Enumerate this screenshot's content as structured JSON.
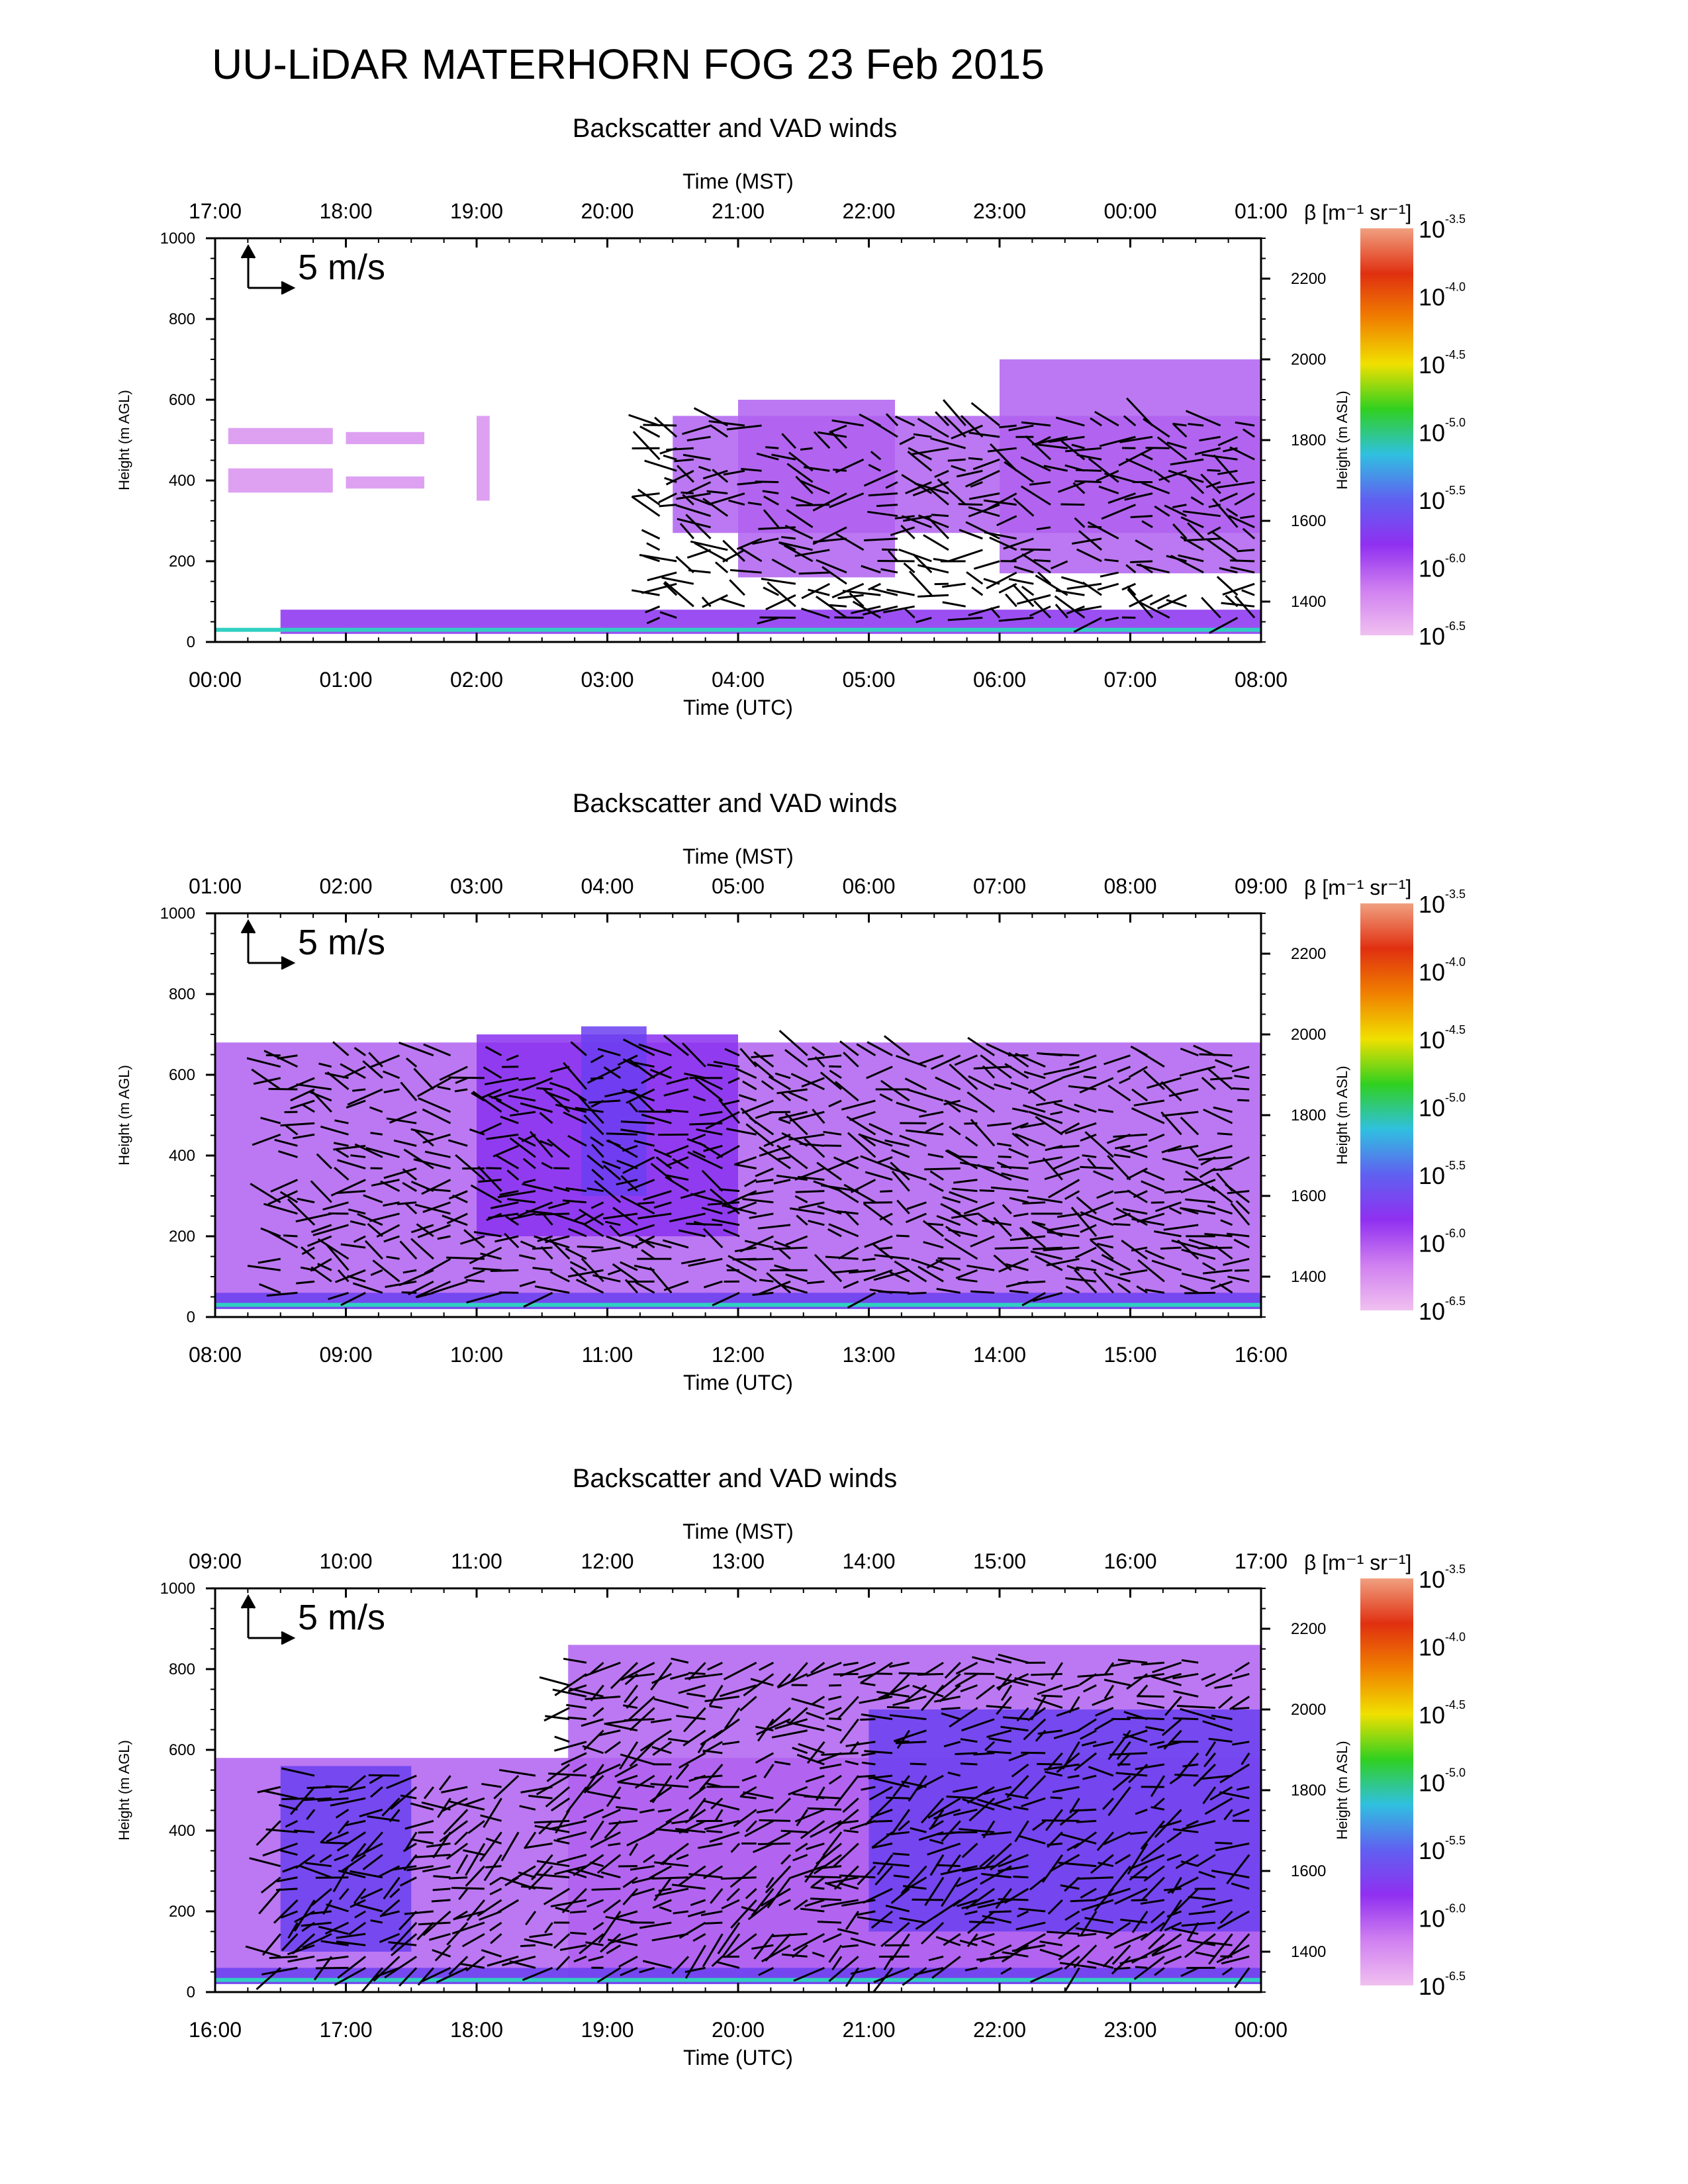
{
  "title": "UU-LiDAR MATERHORN FOG  23 Feb 2015",
  "chart_data": [
    {
      "type": "heatmap",
      "subtitle": "Backscatter and VAD winds",
      "top_axis_label": "Time (MST)",
      "top_ticks": [
        "17:00",
        "18:00",
        "19:00",
        "20:00",
        "21:00",
        "22:00",
        "23:00",
        "00:00",
        "01:00"
      ],
      "xlabel": "Time (UTC)",
      "x_ticks": [
        "00:00",
        "01:00",
        "02:00",
        "03:00",
        "04:00",
        "05:00",
        "06:00",
        "07:00",
        "08:00"
      ],
      "xlim": [
        "00:00",
        "08:00"
      ],
      "ylabel": "Height (m AGL)",
      "y_ticks": [
        0,
        200,
        400,
        600,
        800,
        1000
      ],
      "ylim": [
        0,
        1000
      ],
      "y2label": "Height (m ASL)",
      "y2_ticks": [
        1400,
        1600,
        1800,
        2000,
        2200
      ],
      "reference_vector": "5 m/s",
      "colorbar_label": "β [m⁻¹ sr⁻¹]",
      "colorbar_ticks": [
        "10^-3.5",
        "10^-4.0",
        "10^-4.5",
        "10^-5.0",
        "10^-5.5",
        "10^-6.0",
        "10^-6.5"
      ],
      "colorbar_colors": [
        "#f0a080",
        "#e03010",
        "#f08000",
        "#f0e000",
        "#30d020",
        "#30c0e0",
        "#6060f0",
        "#9030f0",
        "#d080f0",
        "#f0c0f0"
      ],
      "cloud_regions": [
        {
          "t0": 0.1,
          "t1": 0.9,
          "z0": 370,
          "z1": 430,
          "level": 0.2
        },
        {
          "t0": 0.1,
          "t1": 0.9,
          "z0": 490,
          "z1": 530,
          "level": 0.15
        },
        {
          "t0": 1.0,
          "t1": 1.6,
          "z0": 490,
          "z1": 520,
          "level": 0.15
        },
        {
          "t0": 1.0,
          "t1": 1.6,
          "z0": 380,
          "z1": 410,
          "level": 0.15
        },
        {
          "t0": 2.0,
          "t1": 2.1,
          "z0": 350,
          "z1": 560,
          "level": 0.2
        },
        {
          "t0": 3.5,
          "t1": 8.0,
          "z0": 270,
          "z1": 560,
          "level": 0.35
        },
        {
          "t0": 4.0,
          "t1": 5.2,
          "z0": 160,
          "z1": 600,
          "level": 0.3
        },
        {
          "t0": 6.0,
          "t1": 8.0,
          "z0": 170,
          "z1": 700,
          "level": 0.3
        },
        {
          "t0": 0.5,
          "t1": 8.0,
          "z0": 20,
          "z1": 80,
          "level": 0.4
        }
      ]
    },
    {
      "type": "heatmap",
      "subtitle": "Backscatter and VAD winds",
      "top_axis_label": "Time (MST)",
      "top_ticks": [
        "01:00",
        "02:00",
        "03:00",
        "04:00",
        "05:00",
        "06:00",
        "07:00",
        "08:00",
        "09:00"
      ],
      "xlabel": "Time (UTC)",
      "x_ticks": [
        "08:00",
        "09:00",
        "10:00",
        "11:00",
        "12:00",
        "13:00",
        "14:00",
        "15:00",
        "16:00"
      ],
      "xlim": [
        "08:00",
        "16:00"
      ],
      "ylabel": "Height (m AGL)",
      "y_ticks": [
        0,
        200,
        400,
        600,
        800,
        1000
      ],
      "ylim": [
        0,
        1000
      ],
      "y2label": "Height (m ASL)",
      "y2_ticks": [
        1400,
        1600,
        1800,
        2000,
        2200
      ],
      "reference_vector": "5 m/s",
      "colorbar_label": "β [m⁻¹ sr⁻¹]",
      "colorbar_ticks": [
        "10^-3.5",
        "10^-4.0",
        "10^-4.5",
        "10^-5.0",
        "10^-5.5",
        "10^-6.0",
        "10^-6.5"
      ],
      "colorbar_colors": [
        "#f0a080",
        "#e03010",
        "#f08000",
        "#f0e000",
        "#30d020",
        "#30c0e0",
        "#6060f0",
        "#9030f0",
        "#d080f0",
        "#f0c0f0"
      ],
      "cloud_regions": [
        {
          "t0": 0.0,
          "t1": 8.0,
          "z0": 20,
          "z1": 680,
          "level": 0.3
        },
        {
          "t0": 2.0,
          "t1": 4.0,
          "z0": 200,
          "z1": 700,
          "level": 0.45
        },
        {
          "t0": 2.8,
          "t1": 3.3,
          "z0": 300,
          "z1": 720,
          "level": 0.6
        },
        {
          "t0": 0.0,
          "t1": 8.0,
          "z0": 20,
          "z1": 60,
          "level": 0.55
        }
      ]
    },
    {
      "type": "heatmap",
      "subtitle": "Backscatter and VAD winds",
      "top_axis_label": "Time (MST)",
      "top_ticks": [
        "09:00",
        "10:00",
        "11:00",
        "12:00",
        "13:00",
        "14:00",
        "15:00",
        "16:00",
        "17:00"
      ],
      "xlabel": "Time (UTC)",
      "x_ticks": [
        "16:00",
        "17:00",
        "18:00",
        "19:00",
        "20:00",
        "21:00",
        "22:00",
        "23:00",
        "00:00"
      ],
      "xlim": [
        "16:00",
        "00:00"
      ],
      "ylabel": "Height (m AGL)",
      "y_ticks": [
        0,
        200,
        400,
        600,
        800,
        1000
      ],
      "ylim": [
        0,
        1000
      ],
      "y2label": "Height (m ASL)",
      "y2_ticks": [
        1400,
        1600,
        1800,
        2000,
        2200
      ],
      "reference_vector": "5 m/s",
      "colorbar_label": "β [m⁻¹ sr⁻¹]",
      "colorbar_ticks": [
        "10^-3.5",
        "10^-4.0",
        "10^-4.5",
        "10^-5.0",
        "10^-5.5",
        "10^-6.0",
        "10^-6.5"
      ],
      "colorbar_colors": [
        "#f0a080",
        "#e03010",
        "#f08000",
        "#f0e000",
        "#30d020",
        "#30c0e0",
        "#6060f0",
        "#9030f0",
        "#d080f0",
        "#f0c0f0"
      ],
      "cloud_regions": [
        {
          "t0": 0.0,
          "t1": 8.0,
          "z0": 20,
          "z1": 580,
          "level": 0.35
        },
        {
          "t0": 2.7,
          "t1": 8.0,
          "z0": 20,
          "z1": 860,
          "level": 0.35
        },
        {
          "t0": 0.5,
          "t1": 1.5,
          "z0": 100,
          "z1": 560,
          "level": 0.55
        },
        {
          "t0": 5.0,
          "t1": 8.0,
          "z0": 150,
          "z1": 700,
          "level": 0.5
        },
        {
          "t0": 0.0,
          "t1": 8.0,
          "z0": 20,
          "z1": 60,
          "level": 0.6
        }
      ]
    }
  ]
}
